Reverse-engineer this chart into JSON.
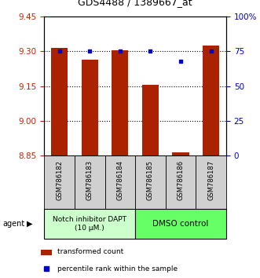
{
  "title": "GDS4488 / 1389667_at",
  "samples": [
    "GSM786182",
    "GSM786183",
    "GSM786184",
    "GSM786185",
    "GSM786186",
    "GSM786187"
  ],
  "red_values": [
    9.315,
    9.265,
    9.305,
    9.155,
    8.865,
    9.325
  ],
  "blue_values": [
    75,
    75,
    75,
    75,
    68,
    75
  ],
  "ylim_left": [
    8.85,
    9.45
  ],
  "ylim_right": [
    0,
    100
  ],
  "yticks_left": [
    8.85,
    9.0,
    9.15,
    9.3,
    9.45
  ],
  "yticks_right": [
    0,
    25,
    50,
    75,
    100
  ],
  "ytick_labels_right": [
    "0",
    "25",
    "50",
    "75",
    "100%"
  ],
  "hlines": [
    9.0,
    9.15,
    9.3
  ],
  "group1_label": "Notch inhibitor DAPT\n(10 μM.)",
  "group2_label": "DMSO control",
  "group1_color": "#ccffcc",
  "group2_color": "#66ff66",
  "bar_color": "#aa2200",
  "dot_color": "#0000cc",
  "legend_red_label": "transformed count",
  "legend_blue_label": "percentile rank within the sample",
  "agent_label": "agent",
  "bar_width": 0.55,
  "tick_color_left": "#cc2200",
  "tick_color_right": "#0000cc",
  "label_fontsize": 7,
  "title_fontsize": 9
}
